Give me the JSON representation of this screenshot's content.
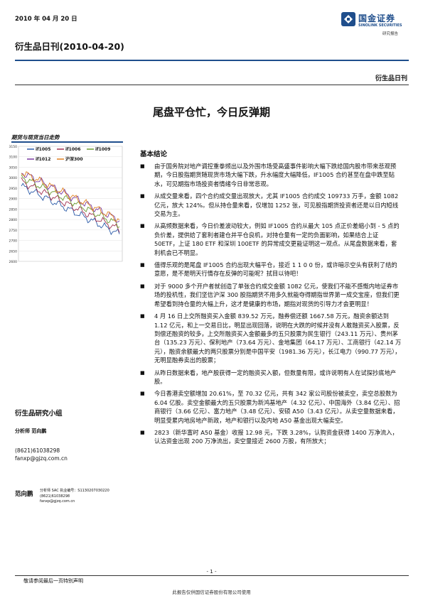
{
  "header": {
    "date": "2010 年 04 月 20 日",
    "report_title": "衍生品日刊(2010-04-20)",
    "logo_cn": "国金证券",
    "logo_en": "SINOLINK SECURITIES",
    "logo_sub": "研究报告",
    "section_tag": "衍生品日刊"
  },
  "main_title": "尾盘平仓忙，今日反弹期",
  "sidebar": {
    "chart_title": "期货与现货当日走势",
    "legend": [
      "if1005",
      "if1006",
      "if1009",
      "if1012",
      "沪深300"
    ],
    "y_ticks": [
      "3150",
      "3100",
      "3050",
      "3000",
      "2950",
      "2900",
      "2850",
      "2800",
      "2750",
      "2700",
      "2650",
      "2600"
    ],
    "team_title": "衍生品研究小组",
    "analyst_label": "分析师 范向鹏",
    "phone": "(8621)61038298",
    "email": "fanxp@gjzq.com.cn",
    "analyst2_name": "范向鹏",
    "analyst2_info": [
      "分析师 SAC 执业编号：S1130207030220",
      "(8621)61038298",
      "fanxp@gjzq.com.cn"
    ]
  },
  "chart_data": {
    "type": "line",
    "title": "期货与现货当日走势",
    "series": [
      {
        "name": "if1005"
      },
      {
        "name": "if1006"
      },
      {
        "name": "if1009"
      },
      {
        "name": "if1012"
      },
      {
        "name": "沪深300"
      }
    ],
    "ylim": [
      2600,
      3150
    ],
    "colors": [
      "#2a5aa8",
      "#a03050",
      "#6a9a30",
      "#7a3aa0",
      "#e08020"
    ]
  },
  "body": {
    "section_head": "基本结论",
    "bullets": [
      "由于国务院对地产调控重拳频出以及外围市场受高盛事件影响大幅下跌给国内股市带来悲观预期，今日股指期货随现货市场大幅下跌，升水幅度大幅降低，IF1005 合约甚至在盘中跌至贴水，可见期指市场投资者情绪今日非常悲观。",
      "从成交量来看，四个合约成交量出现放大，尤其 IF1005 合约成交 109733 万手，金额 1082 亿元，放大 124%。但从持仓量来看，仅增加 1252 张，可见股指期货投资者还是以日内短线交易为主。",
      "从高频数据来看，今日价差波动较大，例如 IF1005 合约从最大 105 点正价差缩小到 - 5 点的负价差，提供给了套利者建仓并平仓良机，对持仓量有一定的负面影响，如果结合上证 50ETF，上证 180 ETF 和深圳 100ETF 的异常成交更能证明这一观点。从尾盘数据来看，套利机会已不明显。",
      "值得乐观的是尾盘 IF1005 合约出现大幅平仓，接近 1 1 0 0 份，或许暗示空头有获利了结的意愿，是不是明天行情存在反弹的可能呢？拭目以待吧！",
      "对于 9000 多个开户者就创造了单张合约成交金额 1082 亿元，使我们不能不感慨内地证券市场的投机性，我们坚信沪深 300 股指期货不用多久就能夺得期指世界第一成交宝座，但我们更希望看到持仓量的大幅上升，这才是健康的市场，期指对现货的引导力才会更明显！",
      "4 月 16 日上交所融资买入金额 839.52 万元，融券偿还额 1667.58 万元，融资余额达到 1.12 亿元，和上一交易日比，明显出现回落，说明在大跌的时候并没有人敢融资买入股票，反到偿还融资的较多，上交所融资买入金额最多的五只股票为民生银行（243.11 万元）、贵州茅台（135.23 万元）、保利地产（73.64 万元）、金地集团（64.17 万元）、工商银行（42.14 万元），融资余额最大的两只股票分别是中国平安（1981.36 万元），长江电力（990.77 万元），无明显融券卖出的股票；",
      "从昨日数据来看，地产股获得一定的融资买入额，但数量有限，或许说明有人在试探抄底地产股。",
      "今日香港卖空额增加 20.61%，至 70.32 亿元，共有 342 家公司股份被卖空，卖空总股数为 6.04 亿股。卖空金额最大的五只股票为新鸿基地产（4.32 亿元）、中国海外（3.84 亿元）、招商银行（3.66 亿元）、富力地产（3.48 亿元）、安硕 A50（3.43 亿元）。从卖空量数据来看，明显受累内地房地产新政，地产和银行以及内地 A50 基金出现大幅卖空。",
      "2823（新华富时 A50 基金）收报 12.98 元，下跌 3.28%，认购资金获得 1400 万净流入，认沽资金出现 200 万净流出，卖空量接近 2600 万股，有所放大；"
    ]
  },
  "footer": {
    "page_num": "- 1 -",
    "note": "敬请参阅最后一页特别声明",
    "disclaimer": "此报告仅供国信证券股份有限公司使用"
  }
}
